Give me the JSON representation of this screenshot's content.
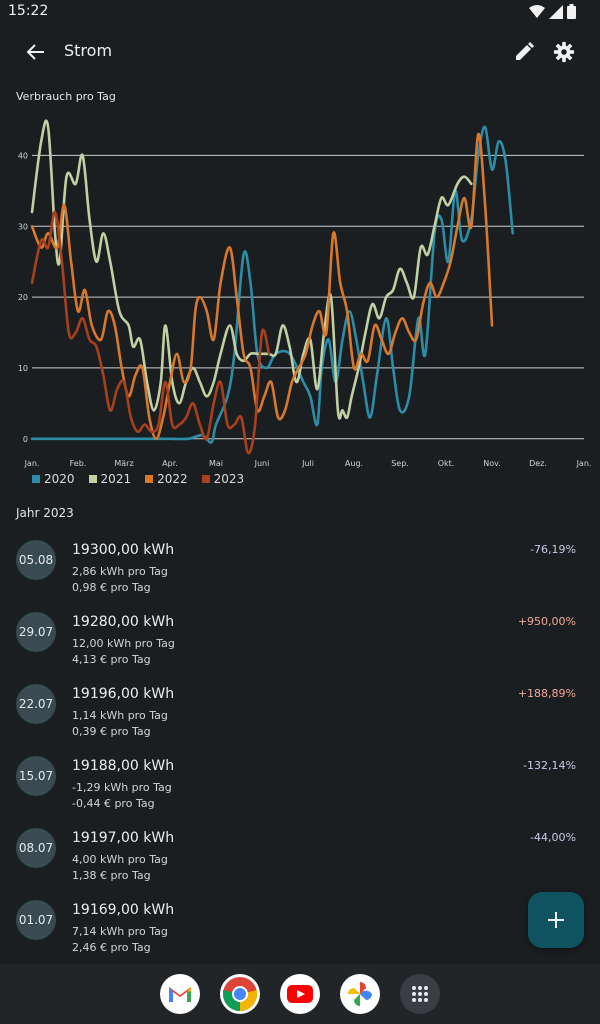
{
  "status": {
    "time": "15:22"
  },
  "appbar": {
    "title": "Strom",
    "back_icon": "arrow-back-icon",
    "edit_icon": "edit-icon",
    "settings_icon": "gear-icon"
  },
  "chart_title": "Verbrauch pro Tag",
  "chart_data": {
    "type": "line",
    "title": "Verbrauch pro Tag",
    "x_ticks": [
      "Jan.",
      "Feb.",
      "März",
      "Apr.",
      "Mai",
      "Juni",
      "Juli",
      "Aug.",
      "Sep.",
      "Okt.",
      "Nov.",
      "Dez.",
      "Jan."
    ],
    "y_ticks": [
      0,
      10,
      20,
      30,
      40
    ],
    "ylim": [
      -3,
      45
    ],
    "grid": true,
    "legend_position": "bottom-left",
    "series": [
      {
        "name": "2020",
        "color": "#2b8da7",
        "points": [
          [
            0,
            0
          ],
          [
            0.5,
            0
          ],
          [
            1,
            0
          ],
          [
            1.5,
            0
          ],
          [
            2,
            0
          ],
          [
            2.5,
            0
          ],
          [
            3,
            0
          ],
          [
            3.4,
            0
          ],
          [
            3.7,
            0.5
          ],
          [
            3.9,
            -0.5
          ],
          [
            4,
            2
          ],
          [
            4.25,
            6
          ],
          [
            4.4,
            12
          ],
          [
            4.6,
            26
          ],
          [
            4.75,
            22
          ],
          [
            4.9,
            12
          ],
          [
            5.1,
            10
          ],
          [
            5.3,
            12
          ],
          [
            5.6,
            12
          ],
          [
            5.9,
            8
          ],
          [
            6.05,
            6
          ],
          [
            6.2,
            2
          ],
          [
            6.3,
            10
          ],
          [
            6.45,
            14
          ],
          [
            6.6,
            8
          ],
          [
            6.75,
            14
          ],
          [
            6.9,
            18
          ],
          [
            7.05,
            14
          ],
          [
            7.2,
            8
          ],
          [
            7.35,
            3
          ],
          [
            7.5,
            9
          ],
          [
            7.7,
            17
          ],
          [
            7.85,
            10
          ],
          [
            8,
            4
          ],
          [
            8.2,
            6
          ],
          [
            8.4,
            17
          ],
          [
            8.55,
            12
          ],
          [
            8.75,
            29
          ],
          [
            8.9,
            31
          ],
          [
            9.05,
            25
          ],
          [
            9.2,
            35
          ],
          [
            9.35,
            28
          ],
          [
            9.55,
            31
          ],
          [
            9.7,
            40
          ],
          [
            9.85,
            44
          ],
          [
            10,
            38
          ],
          [
            10.15,
            42
          ],
          [
            10.3,
            39
          ],
          [
            10.45,
            29
          ]
        ]
      },
      {
        "name": "2021",
        "color": "#bfd0a3",
        "points": [
          [
            0,
            32
          ],
          [
            0.2,
            42
          ],
          [
            0.35,
            44
          ],
          [
            0.5,
            29
          ],
          [
            0.6,
            25
          ],
          [
            0.75,
            37
          ],
          [
            0.95,
            36
          ],
          [
            1.1,
            40
          ],
          [
            1.25,
            31
          ],
          [
            1.4,
            25
          ],
          [
            1.55,
            29
          ],
          [
            1.7,
            25
          ],
          [
            1.9,
            18
          ],
          [
            2.1,
            16
          ],
          [
            2.2,
            13
          ],
          [
            2.35,
            14
          ],
          [
            2.5,
            8
          ],
          [
            2.65,
            4
          ],
          [
            2.8,
            8
          ],
          [
            2.9,
            16
          ],
          [
            3.05,
            8
          ],
          [
            3.2,
            5
          ],
          [
            3.35,
            8
          ],
          [
            3.5,
            10
          ],
          [
            3.65,
            8
          ],
          [
            3.8,
            6
          ],
          [
            3.95,
            8
          ],
          [
            4.1,
            12
          ],
          [
            4.3,
            16
          ],
          [
            4.45,
            12
          ],
          [
            4.6,
            11
          ],
          [
            4.75,
            12
          ],
          [
            4.9,
            12
          ],
          [
            5,
            12
          ],
          [
            5.15,
            12
          ],
          [
            5.3,
            12
          ],
          [
            5.45,
            16
          ],
          [
            5.6,
            13
          ],
          [
            5.75,
            8
          ],
          [
            5.9,
            12
          ],
          [
            6.05,
            14
          ],
          [
            6.2,
            7
          ],
          [
            6.35,
            15
          ],
          [
            6.5,
            20
          ],
          [
            6.65,
            4
          ],
          [
            6.75,
            4
          ],
          [
            6.85,
            3
          ],
          [
            6.95,
            6
          ],
          [
            7.1,
            10
          ],
          [
            7.25,
            15
          ],
          [
            7.4,
            19
          ],
          [
            7.55,
            17
          ],
          [
            7.7,
            20
          ],
          [
            7.85,
            21
          ],
          [
            8,
            24
          ],
          [
            8.15,
            22
          ],
          [
            8.3,
            20
          ],
          [
            8.45,
            27
          ],
          [
            8.6,
            26
          ],
          [
            8.75,
            30
          ],
          [
            8.9,
            34
          ],
          [
            9.05,
            33
          ],
          [
            9.25,
            36
          ],
          [
            9.4,
            37
          ],
          [
            9.55,
            36
          ]
        ]
      },
      {
        "name": "2022",
        "color": "#d8782e",
        "points": [
          [
            0,
            30
          ],
          [
            0.2,
            27
          ],
          [
            0.35,
            29
          ],
          [
            0.55,
            27
          ],
          [
            0.7,
            33
          ],
          [
            0.85,
            25
          ],
          [
            1,
            18
          ],
          [
            1.15,
            21
          ],
          [
            1.3,
            16
          ],
          [
            1.5,
            14
          ],
          [
            1.65,
            18
          ],
          [
            1.8,
            16
          ],
          [
            1.95,
            10
          ],
          [
            2.1,
            6
          ],
          [
            2.25,
            9
          ],
          [
            2.4,
            10
          ],
          [
            2.55,
            3
          ],
          [
            2.7,
            0
          ],
          [
            2.85,
            3
          ],
          [
            3,
            8
          ],
          [
            3.15,
            12
          ],
          [
            3.3,
            8
          ],
          [
            3.45,
            10
          ],
          [
            3.55,
            18
          ],
          [
            3.65,
            20
          ],
          [
            3.8,
            18
          ],
          [
            3.95,
            14
          ],
          [
            4.1,
            22
          ],
          [
            4.3,
            27
          ],
          [
            4.45,
            20
          ],
          [
            4.6,
            12
          ],
          [
            4.75,
            10
          ],
          [
            4.9,
            4
          ],
          [
            5.05,
            6
          ],
          [
            5.2,
            8
          ],
          [
            5.35,
            3
          ],
          [
            5.5,
            4
          ],
          [
            5.65,
            8
          ],
          [
            5.8,
            10
          ],
          [
            5.95,
            12
          ],
          [
            6.1,
            16
          ],
          [
            6.25,
            18
          ],
          [
            6.4,
            15
          ],
          [
            6.55,
            29
          ],
          [
            6.7,
            22
          ],
          [
            6.85,
            18
          ],
          [
            7,
            10
          ],
          [
            7.15,
            12
          ],
          [
            7.3,
            11
          ],
          [
            7.45,
            16
          ],
          [
            7.6,
            14
          ],
          [
            7.75,
            12
          ],
          [
            7.9,
            15
          ],
          [
            8.05,
            17
          ],
          [
            8.2,
            15
          ],
          [
            8.35,
            14
          ],
          [
            8.5,
            19
          ],
          [
            8.65,
            22
          ],
          [
            8.8,
            20
          ],
          [
            8.95,
            22
          ],
          [
            9.1,
            25
          ],
          [
            9.25,
            30
          ],
          [
            9.4,
            34
          ],
          [
            9.55,
            30
          ],
          [
            9.7,
            43
          ],
          [
            9.85,
            33
          ],
          [
            10,
            16
          ]
        ]
      },
      {
        "name": "2023",
        "color": "#a8401e",
        "points": [
          [
            0,
            22
          ],
          [
            0.2,
            28
          ],
          [
            0.35,
            27
          ],
          [
            0.5,
            32
          ],
          [
            0.65,
            25
          ],
          [
            0.8,
            15
          ],
          [
            0.95,
            15
          ],
          [
            1.1,
            17
          ],
          [
            1.25,
            14
          ],
          [
            1.4,
            13
          ],
          [
            1.55,
            9
          ],
          [
            1.7,
            4
          ],
          [
            1.85,
            7
          ],
          [
            2,
            8
          ],
          [
            2.15,
            3
          ],
          [
            2.3,
            1
          ],
          [
            2.45,
            2
          ],
          [
            2.6,
            1
          ],
          [
            2.75,
            2
          ],
          [
            2.9,
            8
          ],
          [
            3.05,
            2
          ],
          [
            3.2,
            2
          ],
          [
            3.35,
            3
          ],
          [
            3.5,
            5
          ],
          [
            3.65,
            2
          ],
          [
            3.8,
            0
          ],
          [
            3.95,
            5
          ],
          [
            4.1,
            8
          ],
          [
            4.25,
            2
          ],
          [
            4.4,
            2
          ],
          [
            4.55,
            3
          ],
          [
            4.7,
            -2
          ],
          [
            4.85,
            2
          ],
          [
            5,
            15
          ],
          [
            5.15,
            12
          ]
        ]
      }
    ]
  },
  "legend": [
    {
      "label": "2020",
      "color": "#2b8da7"
    },
    {
      "label": "2021",
      "color": "#bfd0a3"
    },
    {
      "label": "2022",
      "color": "#d8782e"
    },
    {
      "label": "2023",
      "color": "#a8401e"
    }
  ],
  "section_title": "Jahr 2023",
  "readings": [
    {
      "date": "05.08",
      "kwh": "19300,00 kWh",
      "per_day": "2,86 kWh pro Tag",
      "cost": "0,98 € pro Tag",
      "pct": "-76,19%",
      "pct_color": "#c7cbe8"
    },
    {
      "date": "29.07",
      "kwh": "19280,00 kWh",
      "per_day": "12,00 kWh pro Tag",
      "cost": "4,13 € pro Tag",
      "pct": "+950,00%",
      "pct_color": "#f0a898"
    },
    {
      "date": "22.07",
      "kwh": "19196,00 kWh",
      "per_day": "1,14 kWh pro Tag",
      "cost": "0,39 € pro Tag",
      "pct": "+188,89%",
      "pct_color": "#f0a898"
    },
    {
      "date": "15.07",
      "kwh": "19188,00 kWh",
      "per_day": "-1,29 kWh pro Tag",
      "cost": "-0,44 € pro Tag",
      "pct": "-132,14%",
      "pct_color": "#c7cbe8"
    },
    {
      "date": "08.07",
      "kwh": "19197,00 kWh",
      "per_day": "4,00 kWh pro Tag",
      "cost": "1,38 € pro Tag",
      "pct": "-44,00%",
      "pct_color": "#c7cbe8"
    },
    {
      "date": "01.07",
      "kwh": "19169,00 kWh",
      "per_day": "7,14 kWh pro Tag",
      "cost": "2,46 € pro Tag",
      "pct": "",
      "pct_color": "#c7cbe8"
    }
  ],
  "fab": {
    "icon": "plus-icon"
  },
  "dock": [
    "gmail-icon",
    "chrome-icon",
    "youtube-icon",
    "photos-icon",
    "app-drawer-icon"
  ]
}
